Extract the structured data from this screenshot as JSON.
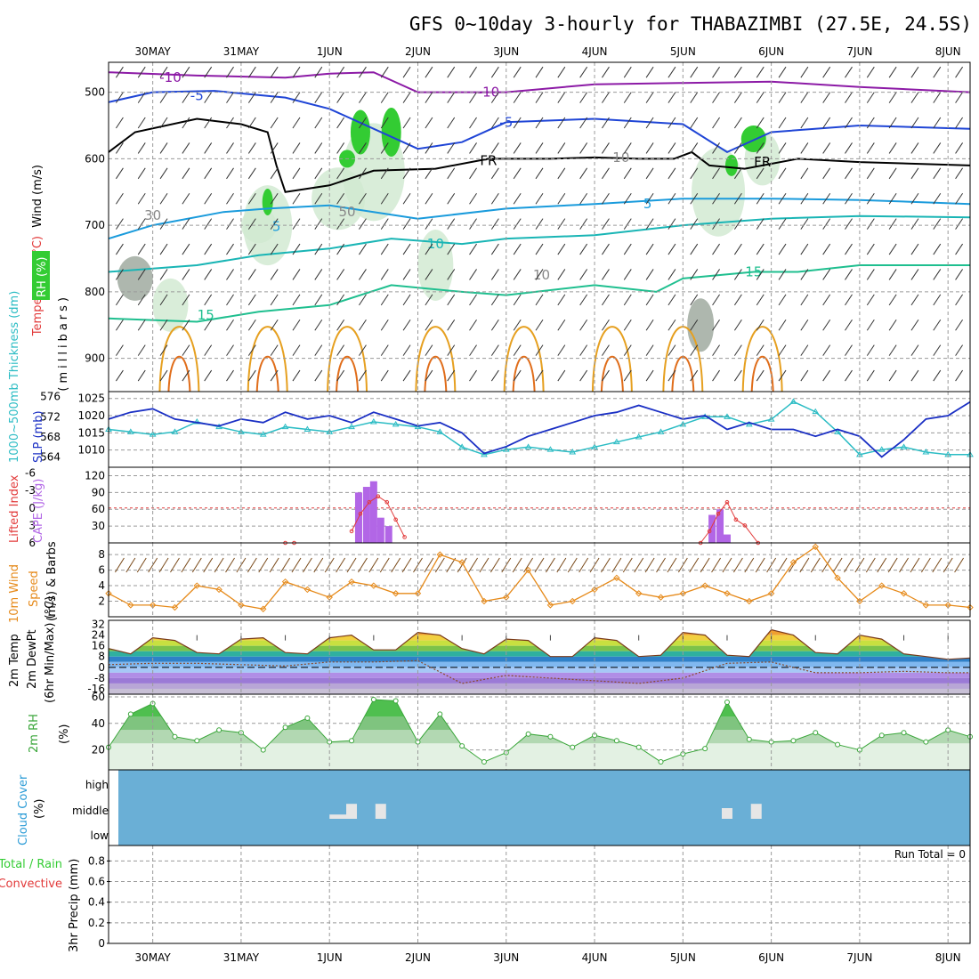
{
  "title": "GFS 0~10day 3-hourly for THABAZIMBI (27.5E, 24.5S)",
  "dates": [
    "30MAY",
    "31MAY",
    "1JUN",
    "2JUN",
    "3JUN",
    "4JUN",
    "5JUN",
    "6JUN",
    "7JUN",
    "8JUN"
  ],
  "colors": {
    "rh_green": "#33cc33",
    "rh_light": "#cfe9cf",
    "rh_grey": "#9aa59a",
    "temp_m10": "#8c1aa6",
    "temp_m5": "#1f45d6",
    "temp_5": "#1a9bdc",
    "temp_10": "#19b5b5",
    "temp_15": "#1fbf8f",
    "temp_warm1": "#e6a020",
    "temp_warm2": "#e06d1a",
    "slp": "#1a2fc4",
    "thickness": "#2bbcc4",
    "cape": "#b266e6",
    "lifted": "#e23a3a",
    "wind": "#e68a1a",
    "barbs": "#7a4a1a",
    "rh2m": "#3aa63a",
    "cloud": "#6aafd6",
    "cloud_box": "#e6e6e6",
    "precip_total": "#33cc33",
    "precip_conv": "#e23a3a"
  },
  "panel_upper": {
    "ylabel": "(millibars)",
    "ylabel_rh": "RH (%)",
    "ylabel_temp": "Temperature (°C)",
    "ylabel_wind": "Wind (m/s)",
    "yticks": [
      "500",
      "600",
      "700",
      "800",
      "900"
    ],
    "contour_labels": [
      "-10",
      "-5",
      "-10",
      "-5",
      "5",
      "5",
      "10",
      "15",
      "15",
      "FR",
      "FR",
      "10",
      "30",
      "50",
      "10"
    ]
  },
  "panel_slp": {
    "ylabel_left": "1000~500mb Thickness (dm)",
    "ylabel_right": "SLP (mb)",
    "yticks_left": [
      "576",
      "572",
      "568",
      "564"
    ],
    "yticks_right": [
      "1025",
      "1020",
      "1015",
      "1010"
    ]
  },
  "panel_cape": {
    "ylabel_left": "Lifted Index",
    "ylabel_right": "CAPE (J/kg)",
    "yticks_left": [
      "-6",
      "-3",
      "0",
      "3",
      "6"
    ],
    "yticks_right": [
      "120",
      "90",
      "60",
      "30"
    ]
  },
  "panel_wind": {
    "ylabel": "10m Wind Speed (m/s) & Barbs",
    "ylabel_l1": "10m Wind",
    "ylabel_l2": "Speed",
    "ylabel_l3": "(m/s) & Barbs",
    "yticks": [
      "8",
      "6",
      "4",
      "2"
    ]
  },
  "panel_temp": {
    "ylabel_l1": "2m Temp",
    "ylabel_l2": "2m DewPt",
    "ylabel_l3": "(6hr Min/Max) (°C)",
    "yticks": [
      "32",
      "24",
      "16",
      "8",
      "0",
      "-8",
      "-16"
    ]
  },
  "panel_rh": {
    "ylabel": "2m RH",
    "ylabel_unit": "(%)",
    "yticks": [
      "60",
      "40",
      "20"
    ]
  },
  "panel_cloud": {
    "ylabel": "Cloud Cover",
    "ylabel_unit": "(%)",
    "levels": [
      "high",
      "middle",
      "low"
    ]
  },
  "panel_precip": {
    "ylabel_l1": "Total / Rain",
    "ylabel_l2": "Convective",
    "ylabel_l3": "3hr Precip (mm)",
    "yticks": [
      "0.8",
      "0.6",
      "0.4",
      "0.2",
      "0"
    ],
    "run_total": "Run Total = 0"
  },
  "chart_data": {
    "type": "line",
    "title": "GFS 0~10day 3-hourly for THABAZIMBI (27.5E, 24.5S)",
    "x_categories": [
      "30MAY",
      "31MAY",
      "1JUN",
      "2JUN",
      "3JUN",
      "4JUN",
      "5JUN",
      "6JUN",
      "7JUN",
      "8JUN"
    ],
    "x_start_day": 29.5,
    "x_end_day": 39.25,
    "series": [
      {
        "name": "SLP (mb)",
        "x": [
          29.5,
          29.75,
          30,
          30.25,
          30.5,
          30.75,
          31,
          31.25,
          31.5,
          31.75,
          32,
          32.25,
          32.5,
          32.75,
          33,
          33.25,
          33.5,
          33.75,
          34,
          34.25,
          34.5,
          34.75,
          35,
          35.25,
          35.5,
          35.75,
          36,
          36.25,
          36.5,
          36.75,
          37,
          37.25,
          37.5,
          37.75,
          38,
          38.25,
          38.5,
          38.75,
          39,
          39.25
        ],
        "values": [
          1019,
          1021,
          1022,
          1019,
          1018,
          1017,
          1019,
          1018,
          1021,
          1019,
          1020,
          1018,
          1021,
          1019,
          1017,
          1018,
          1015,
          1009,
          1011,
          1014,
          1016,
          1018,
          1020,
          1021,
          1023,
          1021,
          1019,
          1020,
          1016,
          1018,
          1016,
          1016,
          1014,
          1016,
          1014,
          1008,
          1013,
          1019,
          1020,
          1024
        ]
      },
      {
        "name": "1000~500mb Thickness (dm)",
        "x": [
          29.5,
          29.75,
          30,
          30.25,
          30.5,
          30.75,
          31,
          31.25,
          31.5,
          31.75,
          32,
          32.25,
          32.5,
          32.75,
          33,
          33.25,
          33.5,
          33.75,
          34,
          34.25,
          34.5,
          34.75,
          35,
          35.25,
          35.5,
          35.75,
          36,
          36.25,
          36.5,
          36.75,
          37,
          37.25,
          37.5,
          37.75,
          38,
          38.25,
          38.5,
          38.75,
          39,
          39.25
        ],
        "values": [
          569.5,
          569,
          568.5,
          569,
          571,
          570,
          569,
          568.5,
          570,
          569.5,
          569,
          570,
          571,
          570.5,
          570,
          569,
          566,
          564.5,
          565.5,
          566,
          565.5,
          565,
          566,
          567,
          568,
          569,
          570.5,
          572,
          572,
          570.5,
          571.5,
          575,
          573,
          569,
          564.5,
          565.5,
          566,
          565,
          564.5,
          564.5
        ]
      },
      {
        "name": "CAPE (J/kg)",
        "x": [
          32.25,
          32.33,
          32.42,
          32.5,
          32.58,
          32.67,
          32.75,
          36.25,
          36.33,
          36.42,
          36.5,
          36.58,
          36.67
        ],
        "values": [
          0,
          90,
          100,
          110,
          45,
          30,
          0,
          0,
          50,
          60,
          15,
          0,
          0
        ]
      },
      {
        "name": "Lifted Index",
        "x": [
          31.5,
          31.6,
          32.25,
          32.35,
          32.45,
          32.55,
          32.65,
          32.75,
          32.85,
          36.2,
          36.3,
          36.4,
          36.5,
          36.6,
          36.7,
          36.85
        ],
        "values": [
          6,
          6,
          4,
          1,
          -1,
          -2,
          -1,
          2,
          5,
          6,
          4,
          1,
          -1,
          2,
          3,
          6
        ]
      },
      {
        "name": "10m Wind Speed (m/s)",
        "x": [
          29.5,
          29.75,
          30,
          30.25,
          30.5,
          30.75,
          31,
          31.25,
          31.5,
          31.75,
          32,
          32.25,
          32.5,
          32.75,
          33,
          33.25,
          33.5,
          33.75,
          34,
          34.25,
          34.5,
          34.75,
          35,
          35.25,
          35.5,
          35.75,
          36,
          36.25,
          36.5,
          36.75,
          37,
          37.25,
          37.5,
          37.75,
          38,
          38.25,
          38.5,
          38.75,
          39,
          39.25
        ],
        "values": [
          3,
          1.5,
          1.5,
          1.2,
          4,
          3.5,
          1.5,
          1,
          4.5,
          3.5,
          2.5,
          4.5,
          4,
          3,
          3,
          8,
          7,
          2,
          2.5,
          6,
          1.5,
          2,
          3.5,
          5,
          3,
          2.5,
          3,
          4,
          3,
          2,
          3,
          7,
          9,
          5,
          2,
          4,
          3,
          1.5,
          1.5,
          1.2
        ]
      },
      {
        "name": "2m Temp (°C)",
        "x": [
          29.5,
          29.75,
          30,
          30.25,
          30.5,
          30.75,
          31,
          31.25,
          31.5,
          31.75,
          32,
          32.25,
          32.5,
          32.75,
          33,
          33.25,
          33.5,
          33.75,
          34,
          34.25,
          34.5,
          34.75,
          35,
          35.25,
          35.5,
          35.75,
          36,
          36.25,
          36.5,
          36.75,
          37,
          37.25,
          37.5,
          37.75,
          38,
          38.25,
          38.5,
          38.75,
          39,
          39.25
        ],
        "values": [
          14,
          10,
          22,
          20,
          11,
          10,
          21,
          22,
          11,
          10,
          22,
          24,
          13,
          13,
          26,
          24,
          14,
          10,
          21,
          20,
          8,
          8,
          22,
          20,
          8,
          9,
          26,
          24,
          9,
          8,
          28,
          24,
          11,
          10,
          24,
          21,
          10,
          8,
          6,
          7
        ]
      },
      {
        "name": "2m DewPt (°C)",
        "x": [
          29.5,
          30,
          30.5,
          31,
          31.5,
          32,
          32.5,
          33,
          33.5,
          34,
          34.5,
          35,
          35.5,
          36,
          36.5,
          37,
          37.5,
          38,
          38.5,
          39,
          39.25
        ],
        "values": [
          2,
          3,
          3,
          2,
          1,
          4,
          4,
          5,
          -12,
          -6,
          -8,
          -10,
          -12,
          -8,
          3,
          4,
          -4,
          -4,
          -3,
          -4,
          -4
        ]
      },
      {
        "name": "2m RH (%)",
        "x": [
          29.5,
          29.75,
          30,
          30.25,
          30.5,
          30.75,
          31,
          31.25,
          31.5,
          31.75,
          32,
          32.25,
          32.5,
          32.75,
          33,
          33.25,
          33.5,
          33.75,
          34,
          34.25,
          34.5,
          34.75,
          35,
          35.25,
          35.5,
          35.75,
          36,
          36.25,
          36.5,
          36.75,
          37,
          37.25,
          37.5,
          37.75,
          38,
          38.25,
          38.5,
          38.75,
          39,
          39.25
        ],
        "values": [
          22,
          47,
          55,
          30,
          27,
          35,
          33,
          20,
          37,
          44,
          26,
          27,
          58,
          57,
          26,
          47,
          23,
          11,
          18,
          32,
          30,
          22,
          31,
          27,
          22,
          11,
          17,
          21,
          56,
          28,
          26,
          27,
          33,
          24,
          20,
          31,
          33,
          26,
          35,
          30
        ]
      },
      {
        "name": "Cloud Cover middle (%)",
        "x": [
          32.0,
          32.25,
          32.58,
          36.5,
          36.83
        ],
        "values": [
          20,
          70,
          70,
          50,
          70
        ]
      },
      {
        "name": "3hr Precip (mm)",
        "x": [
          29.5,
          39.25
        ],
        "values": [
          0,
          0
        ]
      }
    ]
  }
}
